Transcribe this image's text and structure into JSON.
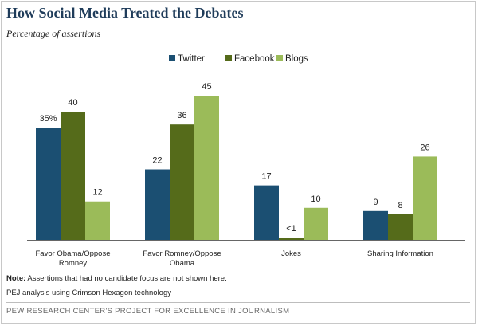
{
  "title": "How Social Media Treated the Debates",
  "subtitle": "Percentage of assertions",
  "note_label": "Note:",
  "note_text": "Assertions that had no candidate focus are not shown here.",
  "source": "PEJ analysis using Crimson Hexagon technology",
  "footer": "PEW RESEARCH CENTER'S PROJECT FOR EXCELLENCE IN JOURNALISM",
  "chart_data": {
    "type": "bar",
    "categories": [
      [
        "Favor Obama/Oppose",
        "Romney"
      ],
      [
        "Favor Romney/Oppose",
        "Obama"
      ],
      [
        "Jokes"
      ],
      [
        "Sharing Information"
      ]
    ],
    "series": [
      {
        "name": "Twitter",
        "color": "#1b4f72",
        "values": [
          35,
          22,
          17,
          9
        ],
        "labels": [
          "35%",
          "22",
          "17",
          "9"
        ]
      },
      {
        "name": "Facebook",
        "color": "#556b1a",
        "values": [
          40,
          36,
          0.5,
          8
        ],
        "labels": [
          "40",
          "36",
          "<1",
          "8"
        ]
      },
      {
        "name": "Blogs",
        "color": "#9bbb59",
        "values": [
          12,
          45,
          10,
          26
        ],
        "labels": [
          "12",
          "45",
          "10",
          "26"
        ]
      }
    ],
    "ylim": [
      0,
      45
    ],
    "grid": false,
    "legend": "top-center"
  }
}
